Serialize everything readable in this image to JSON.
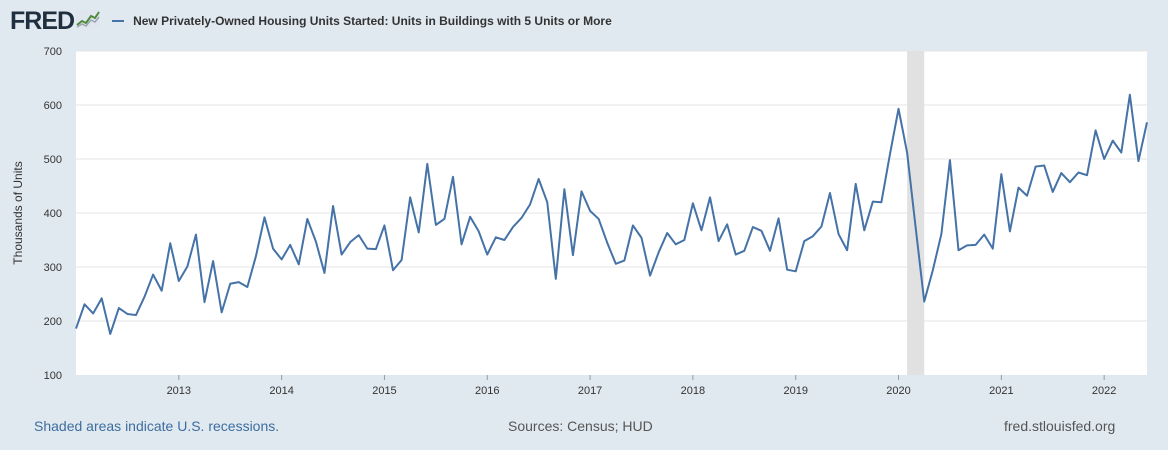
{
  "header": {
    "logo": "FRED",
    "title": "New Privately-Owned Housing Units Started: Units in Buildings with 5 Units or More"
  },
  "footer": {
    "recession_note": "Shaded areas indicate U.S. recessions.",
    "sources": "Sources: Census; HUD",
    "site": "fred.stlouisfed.org"
  },
  "chart_data": {
    "type": "line",
    "ylabel": "Thousands of Units",
    "ylim": [
      100,
      700
    ],
    "yticks": [
      100,
      200,
      300,
      400,
      500,
      600,
      700
    ],
    "xticks": [
      "2013",
      "2014",
      "2015",
      "2016",
      "2017",
      "2018",
      "2019",
      "2020",
      "2021",
      "2022"
    ],
    "xrange": [
      "2012-01",
      "2022-06"
    ],
    "grid": true,
    "recession": {
      "start": "2020-02",
      "end": "2020-04"
    },
    "series_color": "#4572a7",
    "series": [
      {
        "x_start": "2012-01",
        "frequency": "monthly",
        "values": [
          186,
          231,
          214,
          242,
          176,
          224,
          213,
          211,
          245,
          286,
          256,
          344,
          274,
          301,
          360,
          235,
          311,
          216,
          269,
          272,
          263,
          320,
          392,
          334,
          314,
          341,
          305,
          389,
          347,
          289,
          413,
          323,
          346,
          359,
          334,
          333,
          377,
          294,
          313,
          429,
          364,
          491,
          378,
          389,
          467,
          342,
          393,
          366,
          323,
          355,
          350,
          374,
          391,
          416,
          463,
          420,
          278,
          444,
          322,
          440,
          404,
          389,
          345,
          306,
          312,
          377,
          354,
          284,
          327,
          363,
          342,
          350,
          418,
          368,
          429,
          348,
          379,
          323,
          330,
          374,
          367,
          330,
          390,
          295,
          292,
          348,
          357,
          375,
          437,
          361,
          331,
          454,
          368,
          421,
          420,
          509,
          593,
          512,
          373,
          236,
          294,
          361,
          498,
          331,
          340,
          341,
          360,
          334,
          472,
          366,
          447,
          432,
          486,
          488,
          439,
          474,
          457,
          475,
          470,
          553,
          500,
          534,
          512,
          619,
          496,
          568
        ]
      }
    ]
  }
}
